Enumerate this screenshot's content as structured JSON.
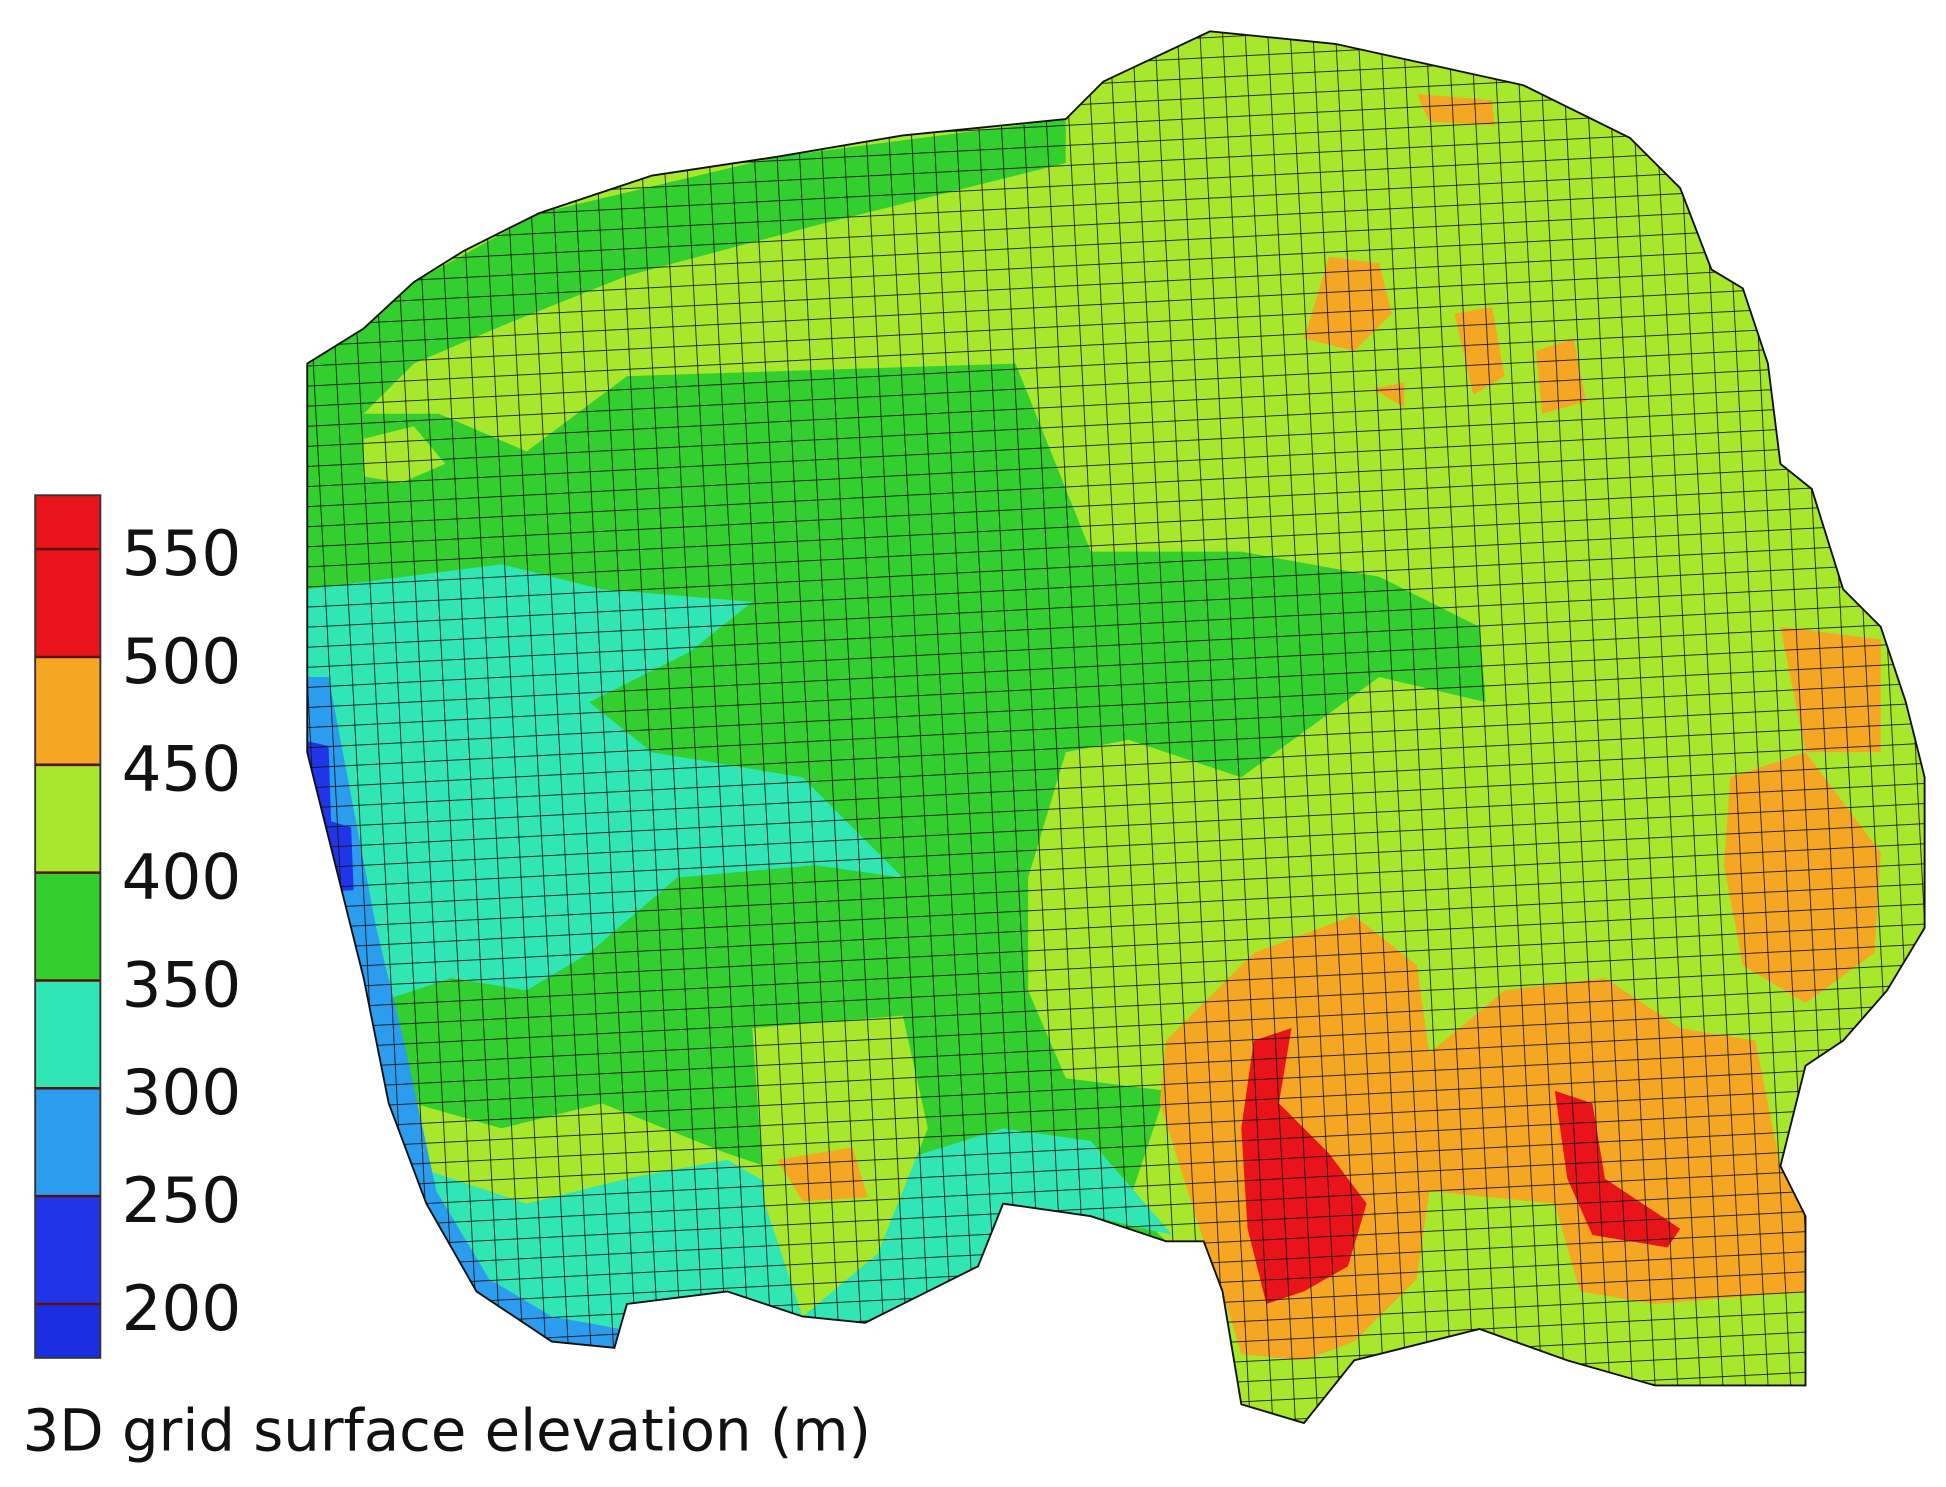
{
  "colorbar": {
    "title": "3D grid surface elevation (m)",
    "lim": [
      175,
      575
    ],
    "ticks": [
      200,
      250,
      300,
      350,
      400,
      450,
      500,
      550
    ],
    "colors": [
      "#1c2fe0",
      "#2035e8",
      "#2b9cee",
      "#2fe6b4",
      "#33cf2e",
      "#a8e82c",
      "#f5a623",
      "#e8141a",
      "#e8141a"
    ]
  }
}
